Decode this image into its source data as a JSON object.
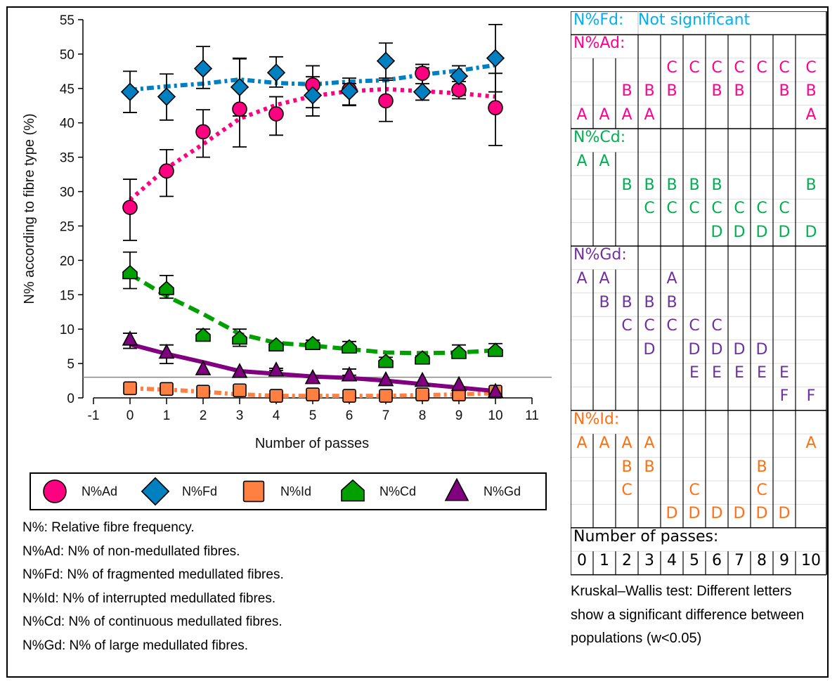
{
  "chart_data": {
    "type": "scatter",
    "title": "",
    "xlabel": "Number of passes",
    "ylabel": "N% according to fibre type (%)",
    "xlim": [
      -1,
      11
    ],
    "ylim": [
      0,
      55
    ],
    "xticks": [
      -1,
      0,
      1,
      2,
      3,
      4,
      5,
      6,
      7,
      8,
      9,
      10,
      11
    ],
    "yticks": [
      0,
      5,
      10,
      15,
      20,
      25,
      30,
      35,
      40,
      45,
      50,
      55
    ],
    "reference_line_y": 3,
    "grid": false,
    "legend_position": "bottom",
    "x": [
      0,
      1,
      2,
      3,
      4,
      5,
      6,
      7,
      8,
      9,
      10
    ],
    "series": [
      {
        "name": "N%Ad",
        "marker": "circle",
        "color": "#FF0080",
        "trend_style": "dotted",
        "values": [
          27.7,
          33.0,
          38.7,
          42.0,
          41.3,
          45.5,
          44.8,
          43.2,
          47.2,
          44.8,
          42.2
        ],
        "err_low": [
          22.9,
          29.3,
          35.0,
          36.5,
          38.2,
          42.2,
          42.6,
          40.2,
          45.7,
          43.5,
          36.7
        ],
        "err_high": [
          31.8,
          36.1,
          41.9,
          49.3,
          43.8,
          46.7,
          46.5,
          46.2,
          48.5,
          46.0,
          47.2
        ],
        "trend": [
          28.8,
          33.4,
          36.9,
          40.6,
          42.6,
          43.9,
          44.6,
          44.9,
          44.6,
          44.3,
          43.8
        ]
      },
      {
        "name": "N%Fd",
        "marker": "diamond",
        "color": "#0080C0",
        "trend_style": "dash-dot",
        "values": [
          44.5,
          43.8,
          47.9,
          45.2,
          47.3,
          44.0,
          44.6,
          49.0,
          44.5,
          46.8,
          49.4
        ],
        "err_low": [
          41.5,
          40.4,
          45.0,
          41.0,
          45.2,
          41.0,
          42.5,
          46.5,
          43.3,
          44.0,
          44.5
        ],
        "err_high": [
          47.5,
          47.1,
          51.1,
          49.4,
          49.6,
          48.3,
          45.7,
          51.6,
          48.0,
          48.3,
          54.3
        ],
        "trend": [
          44.8,
          45.3,
          45.7,
          46.3,
          45.8,
          45.6,
          46.0,
          46.2,
          47.0,
          47.6,
          48.4
        ]
      },
      {
        "name": "N%Id",
        "marker": "square",
        "color": "#FF8040",
        "trend_style": "dash-dot",
        "values": [
          1.4,
          1.3,
          0.9,
          1.1,
          0.3,
          0.5,
          0.3,
          0.3,
          0.5,
          0.5,
          0.9
        ],
        "trend": [
          1.4,
          1.2,
          0.9,
          0.5,
          0.3,
          0.3,
          0.3,
          0.3,
          0.4,
          0.5,
          0.7
        ]
      },
      {
        "name": "N%Cd",
        "marker": "pentagon",
        "color": "#00A000",
        "trend_style": "dashed",
        "values": [
          18.2,
          15.9,
          9.1,
          8.7,
          7.7,
          7.9,
          7.4,
          5.3,
          5.8,
          6.6,
          6.9
        ],
        "err_low": [
          15.9,
          14.5,
          9.1,
          7.5,
          7.7,
          7.9,
          7.4,
          5.3,
          5.8,
          6.3,
          6.9
        ],
        "err_high": [
          21.2,
          17.8,
          10.0,
          10.0,
          8.0,
          8.4,
          8.2,
          5.9,
          6.1,
          7.7,
          7.9
        ],
        "trend": [
          18.0,
          14.8,
          12.2,
          9.3,
          8.0,
          7.6,
          7.1,
          6.6,
          6.5,
          6.6,
          6.9
        ]
      },
      {
        "name": "N%Gd",
        "marker": "triangle",
        "color": "#800080",
        "trend_style": "solid",
        "values": [
          8.5,
          6.6,
          4.2,
          3.8,
          4.0,
          2.9,
          3.3,
          2.6,
          2.5,
          1.9,
          0.9
        ],
        "err_low": [
          7.2,
          5.0,
          4.2,
          3.8,
          4.0,
          2.9,
          3.3,
          2.6,
          2.5,
          1.9,
          0.9
        ],
        "err_high": [
          9.4,
          7.7,
          4.2,
          3.8,
          4.3,
          2.9,
          4.2,
          2.6,
          2.5,
          1.9,
          0.9
        ],
        "trend": [
          7.8,
          6.4,
          5.2,
          3.9,
          3.5,
          3.1,
          2.9,
          2.5,
          2.0,
          1.5,
          1.0
        ]
      }
    ]
  },
  "legend": [
    {
      "label": "N%Ad",
      "marker": "circle",
      "color": "#FF0080"
    },
    {
      "label": "N%Fd",
      "marker": "diamond",
      "color": "#0080C0"
    },
    {
      "label": "N%Id",
      "marker": "square",
      "color": "#FF8040"
    },
    {
      "label": "N%Cd",
      "marker": "pentagon",
      "color": "#00A000"
    },
    {
      "label": "N%Gd",
      "marker": "triangle",
      "color": "#800080"
    }
  ],
  "definitions": [
    "N%: Relative fibre frequency.",
    "N%Ad: N% of non-medullated fibres.",
    "N%Fd: N% of fragmented medullated fibres.",
    "N%Id: N% of interrupted medullated fibres.",
    "N%Cd: N% of continuous medullated fibres.",
    "N%Gd: N% of large medullated fibres."
  ],
  "significance_table": {
    "fd_label": "N%Fd:",
    "fd_text": "Not significant",
    "fd_color": "#00B0F0",
    "groups": [
      {
        "label": "N%Ad:",
        "color": "#FF0090",
        "rows": [
          [
            "",
            "",
            "",
            "",
            "C",
            "C",
            "C",
            "C",
            "C",
            "C",
            "C"
          ],
          [
            "",
            "",
            "B",
            "B",
            "B",
            "",
            "B",
            "B",
            "",
            "B",
            "B"
          ],
          [
            "A",
            "A",
            "A",
            "A",
            "",
            "",
            "",
            "",
            "",
            "",
            "A"
          ]
        ]
      },
      {
        "label": "N%Cd:",
        "color": "#00B050",
        "rows": [
          [
            "A",
            "A",
            "",
            "",
            "",
            "",
            "",
            "",
            "",
            "",
            ""
          ],
          [
            "",
            "",
            "B",
            "B",
            "B",
            "B",
            "B",
            "",
            "",
            "",
            "B"
          ],
          [
            "",
            "",
            "",
            "C",
            "C",
            "C",
            "C",
            "C",
            "C",
            "C",
            ""
          ],
          [
            "",
            "",
            "",
            "",
            "",
            "",
            "D",
            "D",
            "D",
            "D",
            "D"
          ]
        ]
      },
      {
        "label": "N%Gd:",
        "color": "#7030A0",
        "rows": [
          [
            "A",
            "A",
            "",
            "",
            "A",
            "",
            "",
            "",
            "",
            "",
            ""
          ],
          [
            "",
            "B",
            "B",
            "B",
            "B",
            "",
            "",
            "",
            "",
            "",
            ""
          ],
          [
            "",
            "",
            "C",
            "C",
            "C",
            "C",
            "C",
            "",
            "",
            "",
            ""
          ],
          [
            "",
            "",
            "",
            "D",
            "",
            "D",
            "D",
            "D",
            "D",
            "",
            ""
          ],
          [
            "",
            "",
            "",
            "",
            "",
            "E",
            "E",
            "E",
            "E",
            "E",
            ""
          ],
          [
            "",
            "",
            "",
            "",
            "",
            "",
            "",
            "",
            "",
            "F",
            "F"
          ]
        ]
      },
      {
        "label": "N%Id:",
        "color": "#FF7010",
        "rows": [
          [
            "A",
            "A",
            "A",
            "A",
            "",
            "",
            "",
            "",
            "",
            "",
            "A"
          ],
          [
            "",
            "",
            "B",
            "B",
            "",
            "",
            "",
            "",
            "B",
            "",
            ""
          ],
          [
            "",
            "",
            "C",
            "",
            "",
            "C",
            "",
            "",
            "C",
            "",
            ""
          ],
          [
            "",
            "",
            "",
            "",
            "D",
            "D",
            "D",
            "D",
            "D",
            "D",
            ""
          ]
        ]
      }
    ],
    "passes_label": "Number of passes:",
    "passes": [
      "0",
      "1",
      "2",
      "3",
      "4",
      "5",
      "6",
      "7",
      "8",
      "9",
      "10"
    ]
  },
  "test_note": "Kruskal–Wallis test: Different letters show a significant difference between populations (w<0.05)"
}
